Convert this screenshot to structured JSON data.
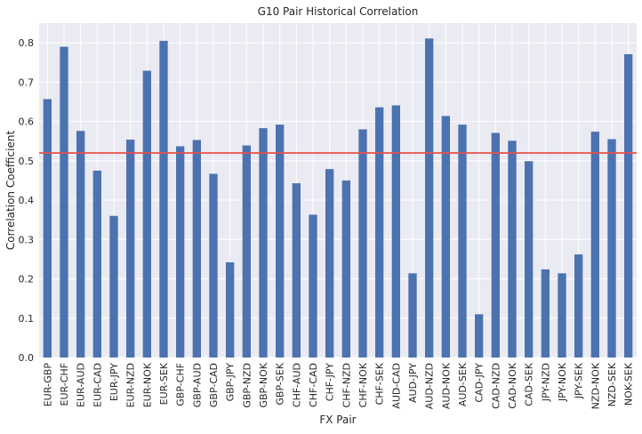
{
  "chart_data": {
    "type": "bar",
    "title": "G10 Pair Historical Correlation",
    "xlabel": "FX Pair",
    "ylabel": "Correlation Coefficient",
    "ylim": [
      0,
      0.85
    ],
    "yticks": [
      "0.0",
      "0.1",
      "0.2",
      "0.3",
      "0.4",
      "0.5",
      "0.6",
      "0.7",
      "0.8"
    ],
    "grid": true,
    "legend": "none",
    "categories": [
      "EUR-GBP",
      "EUR-CHF",
      "EUR-AUD",
      "EUR-CAD",
      "EUR-JPY",
      "EUR-NZD",
      "EUR-NOK",
      "EUR-SEK",
      "GBP-CHF",
      "GBP-AUD",
      "GBP-CAD",
      "GBP-JPY",
      "GBP-NZD",
      "GBP-NOK",
      "GBP-SEK",
      "CHF-AUD",
      "CHF-CAD",
      "CHF-JPY",
      "CHF-NZD",
      "CHF-NOK",
      "CHF-SEK",
      "AUD-CAD",
      "AUD-JPY",
      "AUD-NZD",
      "AUD-NOK",
      "AUD-SEK",
      "CAD-JPY",
      "CAD-NZD",
      "CAD-NOK",
      "CAD-SEK",
      "JPY-NZD",
      "JPY-NOK",
      "JPY-SEK",
      "NZD-NOK",
      "NZD-SEK",
      "NOK-SEK"
    ],
    "values": [
      0.657,
      0.79,
      0.576,
      0.475,
      0.36,
      0.554,
      0.729,
      0.805,
      0.537,
      0.553,
      0.467,
      0.242,
      0.539,
      0.583,
      0.592,
      0.443,
      0.363,
      0.479,
      0.45,
      0.58,
      0.636,
      0.641,
      0.214,
      0.811,
      0.614,
      0.592,
      0.11,
      0.571,
      0.551,
      0.499,
      0.224,
      0.214,
      0.262,
      0.574,
      0.555,
      0.771
    ],
    "reference_line": {
      "value": 0.52
    },
    "colors": {
      "bar": "#4c72b0",
      "reference_line": "#e5504a",
      "background": "#eaeaf2",
      "grid": "#ffffff"
    }
  }
}
